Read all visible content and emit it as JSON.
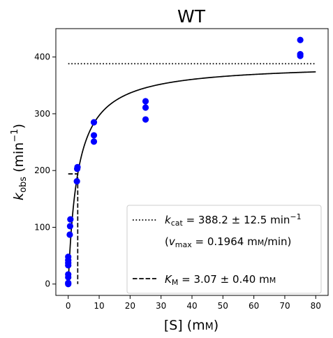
{
  "chart_data": {
    "type": "scatter",
    "title": "WT",
    "xlabel": {
      "main": "[S] (m",
      "smallcap": "M",
      "tail": ")"
    },
    "ylabel": {
      "k": "k",
      "sub": "obs",
      "mid": " (min",
      "sup": "−1",
      "tail": ")"
    },
    "xlim": [
      -4,
      84
    ],
    "ylim": [
      -20,
      450
    ],
    "xticks": [
      0,
      10,
      20,
      30,
      40,
      50,
      60,
      70,
      80
    ],
    "yticks": [
      0,
      100,
      200,
      300,
      400
    ],
    "grid": false,
    "legend_position": "lower-right",
    "points": [
      [
        0,
        0
      ],
      [
        0,
        2
      ],
      [
        0,
        12
      ],
      [
        0,
        17
      ],
      [
        0,
        33
      ],
      [
        0,
        37
      ],
      [
        0,
        42
      ],
      [
        0,
        48
      ],
      [
        0.5,
        87
      ],
      [
        0.6,
        102
      ],
      [
        0.7,
        114
      ],
      [
        2.8,
        181
      ],
      [
        2.9,
        203
      ],
      [
        3.0,
        206
      ],
      [
        8.3,
        251
      ],
      [
        8.3,
        262
      ],
      [
        8.3,
        285
      ],
      [
        25,
        290
      ],
      [
        25,
        311
      ],
      [
        25,
        322
      ],
      [
        75,
        402
      ],
      [
        75,
        405
      ],
      [
        75,
        430
      ]
    ],
    "fit": {
      "kcat": 388.2,
      "KM": 3.07,
      "x_range": [
        0,
        80
      ]
    },
    "kcat_line": {
      "y": 388.2,
      "x_range": [
        0,
        80
      ]
    },
    "km_marker": {
      "x": 3.07,
      "y": 194.1
    },
    "legend": {
      "kcat": {
        "k": "k",
        "sub": "cat",
        "text": " = 388.2 ± 12.5 min",
        "sup": "−1"
      },
      "vmax": {
        "open": "(",
        "v": "v",
        "sub": "max",
        "text": " = 0.1964 m",
        "smallcap": "M",
        "tail": "/min)"
      },
      "km": {
        "k": "K",
        "sub": "M",
        "text": " = 3.07 ± 0.40 m",
        "smallcap": "M"
      }
    },
    "colors": {
      "points": "#0000ff",
      "lines": "#000000"
    }
  }
}
